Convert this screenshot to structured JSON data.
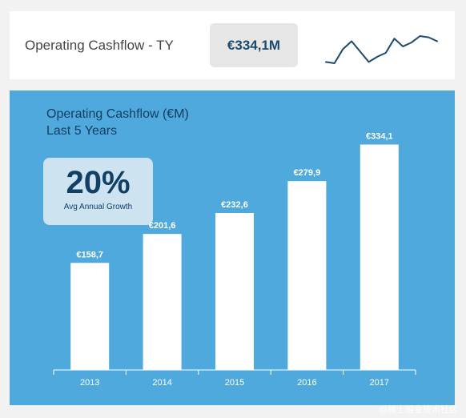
{
  "top_card": {
    "title": "Operating Cashflow - TY",
    "kpi_value": "€334,1M",
    "sparkline": [
      3,
      2.5,
      8,
      11,
      7,
      3,
      5,
      6.5,
      12,
      9,
      10.5,
      13,
      12.5,
      11
    ]
  },
  "chart_panel": {
    "title_line1": "Operating Cashflow (€M)",
    "title_line2": "Last 5 Years",
    "growth_value": "20%",
    "growth_label": "Avg Annual Growth"
  },
  "chart_data": {
    "type": "bar",
    "categories": [
      "2013",
      "2014",
      "2015",
      "2016",
      "2017"
    ],
    "values": [
      158.7,
      201.6,
      232.6,
      279.9,
      334.1
    ],
    "data_labels": [
      "€158,7",
      "€201,6",
      "€232,6",
      "€279,9",
      "€334,1"
    ],
    "title": "Operating Cashflow (€M)",
    "subtitle": "Last 5 Years",
    "xlabel": "",
    "ylabel": "",
    "ylim": [
      0,
      400
    ],
    "grid": false
  },
  "colors": {
    "panel_bg": "#4fa9dc",
    "bar": "#ffffff",
    "title_text": "#0f3e63",
    "kpi_text": "#1c4a6e",
    "sparkline": "#1c4a6e"
  },
  "watermark": "@稀土掘金技术社区"
}
